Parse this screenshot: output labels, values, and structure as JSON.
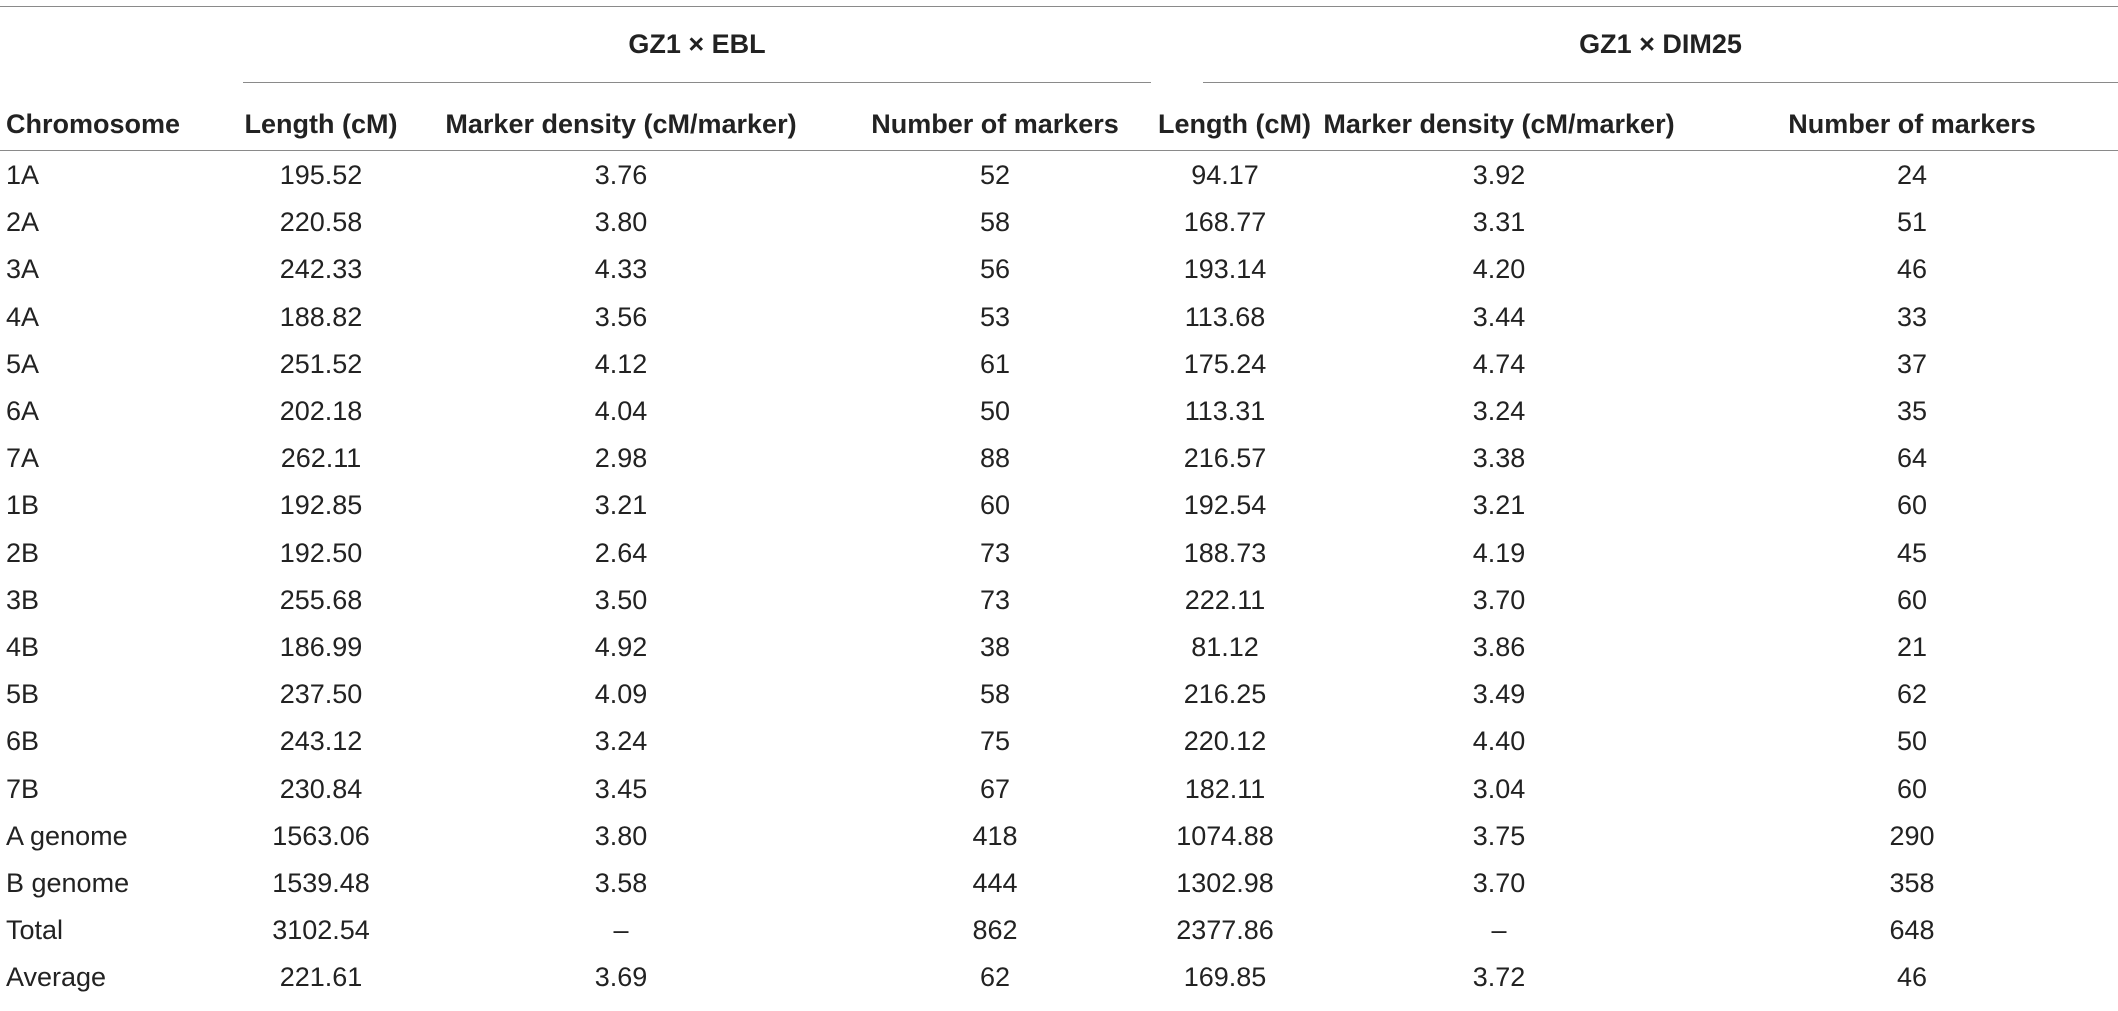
{
  "groups": {
    "left_title": "GZ1 × EBL",
    "right_title": "GZ1 × DIM25"
  },
  "columns": {
    "chromosome": "Chromosome",
    "length": "Length (cM)",
    "density": "Marker density (cM/marker)",
    "markers": "Number of markers"
  },
  "rows": [
    [
      "1A",
      "195.52",
      "3.76",
      "52",
      "94.17",
      "3.92",
      "24"
    ],
    [
      "2A",
      "220.58",
      "3.80",
      "58",
      "168.77",
      "3.31",
      "51"
    ],
    [
      "3A",
      "242.33",
      "4.33",
      "56",
      "193.14",
      "4.20",
      "46"
    ],
    [
      "4A",
      "188.82",
      "3.56",
      "53",
      "113.68",
      "3.44",
      "33"
    ],
    [
      "5A",
      "251.52",
      "4.12",
      "61",
      "175.24",
      "4.74",
      "37"
    ],
    [
      "6A",
      "202.18",
      "4.04",
      "50",
      "113.31",
      "3.24",
      "35"
    ],
    [
      "7A",
      "262.11",
      "2.98",
      "88",
      "216.57",
      "3.38",
      "64"
    ],
    [
      "1B",
      "192.85",
      "3.21",
      "60",
      "192.54",
      "3.21",
      "60"
    ],
    [
      "2B",
      "192.50",
      "2.64",
      "73",
      "188.73",
      "4.19",
      "45"
    ],
    [
      "3B",
      "255.68",
      "3.50",
      "73",
      "222.11",
      "3.70",
      "60"
    ],
    [
      "4B",
      "186.99",
      "4.92",
      "38",
      "81.12",
      "3.86",
      "21"
    ],
    [
      "5B",
      "237.50",
      "4.09",
      "58",
      "216.25",
      "3.49",
      "62"
    ],
    [
      "6B",
      "243.12",
      "3.24",
      "75",
      "220.12",
      "4.40",
      "50"
    ],
    [
      "7B",
      "230.84",
      "3.45",
      "67",
      "182.11",
      "3.04",
      "60"
    ],
    [
      "A genome",
      "1563.06",
      "3.80",
      "418",
      "1074.88",
      "3.75",
      "290"
    ],
    [
      "B genome",
      "1539.48",
      "3.58",
      "444",
      "1302.98",
      "3.70",
      "358"
    ],
    [
      "Total",
      "3102.54",
      "–",
      "862",
      "2377.86",
      "–",
      "648"
    ],
    [
      "Average",
      "221.61",
      "3.69",
      "62",
      "169.85",
      "3.72",
      "46"
    ]
  ]
}
